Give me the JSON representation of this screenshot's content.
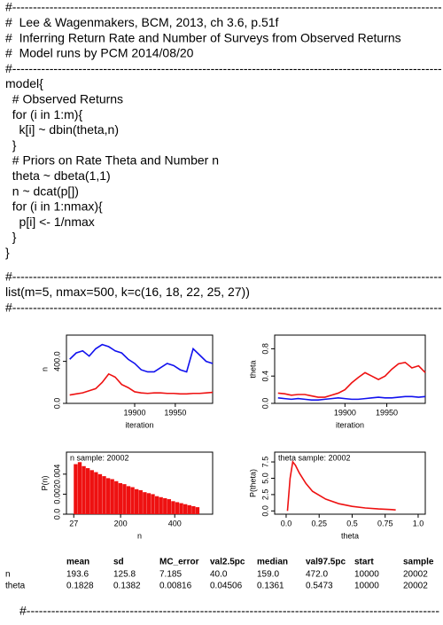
{
  "code": [
    "#----------------------------------------------------------------------------------------------------------",
    "#  Lee & Wagenmakers, BCM, 2013, ch 3.6, p.51f",
    "#  Inferring Return Rate and Number of Surveys from Observed Returns",
    "#  Model runs by PCM 2014/08/20",
    "#----------------------------------------------------------------------------------------------------------",
    "model{",
    "  # Observed Returns",
    "  for (i in 1:m){",
    "    k[i] ~ dbin(theta,n)",
    "  }",
    "  # Priors on Rate Theta and Number n",
    "  theta ~ dbeta(1,1)",
    "  n ~ dcat(p[])",
    "  for (i in 1:nmax){",
    "    p[i] <- 1/nmax",
    "  }",
    "}"
  ],
  "data_block": [
    "#----------------------------------------------------------------------------------------------------------",
    "list(m=5, nmax=500, k=c(16, 18, 22, 25, 27))",
    "#----------------------------------------------------------------------------------------------------------"
  ],
  "plots": [
    {
      "type": "line",
      "ylabel": "n",
      "xlabel": "iteration",
      "xlim": [
        19816,
        19996
      ],
      "ylim": [
        0,
        650
      ],
      "xticks": [
        19900,
        19950
      ],
      "yticks": [
        {
          "value": 0,
          "label": "0.0"
        },
        {
          "value": 400,
          "label": "400.0"
        }
      ],
      "x": [
        19820,
        19828,
        19836,
        19844,
        19852,
        19860,
        19868,
        19876,
        19884,
        19892,
        19900,
        19908,
        19916,
        19924,
        19932,
        19940,
        19948,
        19956,
        19964,
        19972,
        19980,
        19988,
        19996
      ],
      "series": [
        {
          "color": "#ee1111",
          "values": [
            80,
            90,
            100,
            120,
            140,
            200,
            280,
            250,
            180,
            150,
            110,
            100,
            95,
            100,
            100,
            95,
            95,
            90,
            90,
            95,
            95,
            100,
            105
          ]
        },
        {
          "color": "#1111ee",
          "values": [
            420,
            480,
            500,
            450,
            520,
            560,
            540,
            500,
            480,
            420,
            380,
            320,
            300,
            300,
            340,
            380,
            360,
            320,
            300,
            520,
            460,
            400,
            380
          ]
        }
      ]
    },
    {
      "type": "line",
      "ylabel": "theta",
      "xlabel": "iteration",
      "xlim": [
        19816,
        19996
      ],
      "ylim": [
        0,
        1
      ],
      "xticks": [
        19900,
        19950
      ],
      "yticks": [
        {
          "value": 0,
          "label": "0.0"
        },
        0.4,
        0.8
      ],
      "x": [
        19820,
        19828,
        19836,
        19844,
        19852,
        19860,
        19868,
        19876,
        19884,
        19892,
        19900,
        19908,
        19916,
        19924,
        19932,
        19940,
        19948,
        19956,
        19964,
        19972,
        19980,
        19988,
        19996
      ],
      "series": [
        {
          "color": "#ee1111",
          "values": [
            0.15,
            0.14,
            0.12,
            0.13,
            0.13,
            0.11,
            0.09,
            0.09,
            0.12,
            0.15,
            0.2,
            0.3,
            0.38,
            0.45,
            0.4,
            0.35,
            0.4,
            0.5,
            0.58,
            0.6,
            0.52,
            0.55,
            0.45
          ]
        },
        {
          "color": "#1111ee",
          "values": [
            0.08,
            0.07,
            0.06,
            0.07,
            0.06,
            0.05,
            0.05,
            0.06,
            0.07,
            0.08,
            0.07,
            0.06,
            0.06,
            0.07,
            0.08,
            0.09,
            0.08,
            0.08,
            0.09,
            0.1,
            0.1,
            0.09,
            0.1
          ]
        }
      ]
    },
    {
      "type": "bar",
      "title": "n sample: 20002",
      "ylabel": "P(n)",
      "xlabel": "n",
      "xlim": [
        0,
        540
      ],
      "ylim": [
        0,
        0.0062
      ],
      "xticks": [
        27,
        200,
        400
      ],
      "yticks": [
        {
          "value": 0,
          "label": "0.0"
        },
        0.002,
        0.004
      ],
      "x": [
        27,
        42,
        57,
        72,
        87,
        102,
        117,
        132,
        147,
        162,
        177,
        192,
        207,
        222,
        237,
        252,
        267,
        282,
        297,
        312,
        327,
        342,
        357,
        372,
        387,
        402,
        417,
        432,
        447,
        462,
        477
      ],
      "series": [
        {
          "color": "#ee1111",
          "values": [
            0.005,
            0.0052,
            0.0048,
            0.0046,
            0.0044,
            0.0042,
            0.004,
            0.0038,
            0.0036,
            0.0035,
            0.0033,
            0.0031,
            0.003,
            0.0028,
            0.0027,
            0.0025,
            0.0024,
            0.0022,
            0.0021,
            0.002,
            0.0018,
            0.0017,
            0.0016,
            0.0015,
            0.0013,
            0.0012,
            0.0011,
            0.001,
            0.0009,
            0.0008,
            0.0007
          ]
        }
      ]
    },
    {
      "type": "line",
      "title": "theta sample: 20002",
      "ylabel": "P(theta)",
      "xlabel": "theta",
      "xlim": [
        -0.087,
        1.054
      ],
      "ylim": [
        -0.5,
        9
      ],
      "xticks": [
        {
          "value": 0,
          "label": "0.0"
        },
        0.25,
        0.5,
        0.75,
        {
          "value": 1,
          "label": "1.0"
        }
      ],
      "yticks": [
        {
          "value": 0,
          "label": "0.0"
        },
        2.5,
        {
          "value": 5,
          "label": "5.0"
        },
        7.5
      ],
      "x": [
        0.01,
        0.03,
        0.05,
        0.07,
        0.1,
        0.15,
        0.2,
        0.3,
        0.4,
        0.5,
        0.6,
        0.7,
        0.8,
        0.83
      ],
      "series": [
        {
          "color": "#ee1111",
          "values": [
            0,
            5,
            7.5,
            7,
            5.8,
            4.2,
            3,
            1.8,
            1.1,
            0.7,
            0.45,
            0.3,
            0.2,
            0.15
          ]
        }
      ]
    }
  ],
  "table": {
    "header": [
      "mean",
      "sd",
      "MC_error",
      "val2.5pc",
      "median",
      "val97.5pc",
      "start",
      "sample"
    ],
    "rows": [
      [
        "n",
        "193.6",
        "125.8",
        "7.185",
        "40.0",
        "159.0",
        "472.0",
        "10000",
        "20002"
      ],
      [
        "theta",
        "0.1828",
        "0.1382",
        "0.00816",
        "0.04506",
        "0.1361",
        "0.5473",
        "10000",
        "20002"
      ]
    ]
  },
  "footer": "#----------------------------------------------------------------------------------------------------"
}
